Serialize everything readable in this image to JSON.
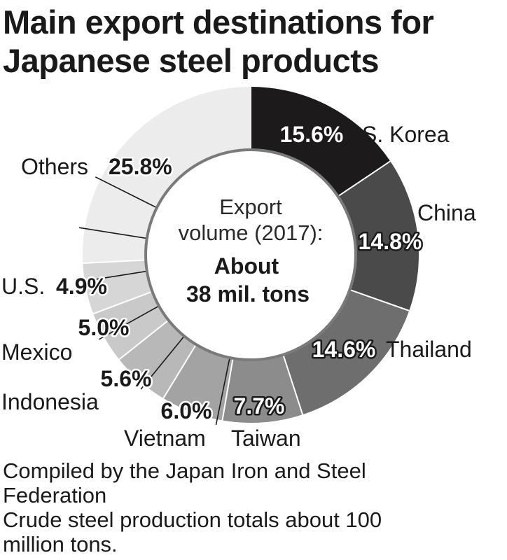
{
  "title": {
    "line1": "Main export destinations for",
    "line2": "Japanese steel products"
  },
  "center_label": {
    "line1": "Export",
    "line2": "volume (2017):",
    "line3": "About",
    "line4": "38 mil. tons"
  },
  "notes": {
    "source_line1": "Compiled by the Japan Iron and Steel",
    "source_line2": "Federation",
    "note_line1": "Crude steel production totals about 100",
    "note_line2": "million tons."
  },
  "chart_data": {
    "type": "pie",
    "style": "donut",
    "unit": "%",
    "start": "12 o'clock, clockwise",
    "slices": [
      {
        "label": "S. Korea",
        "value": 15.6,
        "value_label": "15.6%",
        "color": "#1c1a1b"
      },
      {
        "label": "China",
        "value": 14.8,
        "value_label": "14.8%",
        "color": "#4a4a4a"
      },
      {
        "label": "Thailand",
        "value": 14.6,
        "value_label": "14.6%",
        "color": "#6e6e6e"
      },
      {
        "label": "Taiwan",
        "value": 7.7,
        "value_label": "7.7%",
        "color": "#8c8c8c"
      },
      {
        "label": "Vietnam",
        "value": 6.0,
        "value_label": "6.0%",
        "color": "#a3a3a3"
      },
      {
        "label": "Indonesia",
        "value": 5.6,
        "value_label": "5.6%",
        "color": "#b8b8b8"
      },
      {
        "label": "Mexico",
        "value": 5.0,
        "value_label": "5.0%",
        "color": "#c9c9c9"
      },
      {
        "label": "U.S.",
        "value": 4.9,
        "value_label": "4.9%",
        "color": "#d6d6d6"
      },
      {
        "label": "Others",
        "value": 25.8,
        "value_label": "25.8%",
        "color": "#ececec"
      }
    ]
  }
}
